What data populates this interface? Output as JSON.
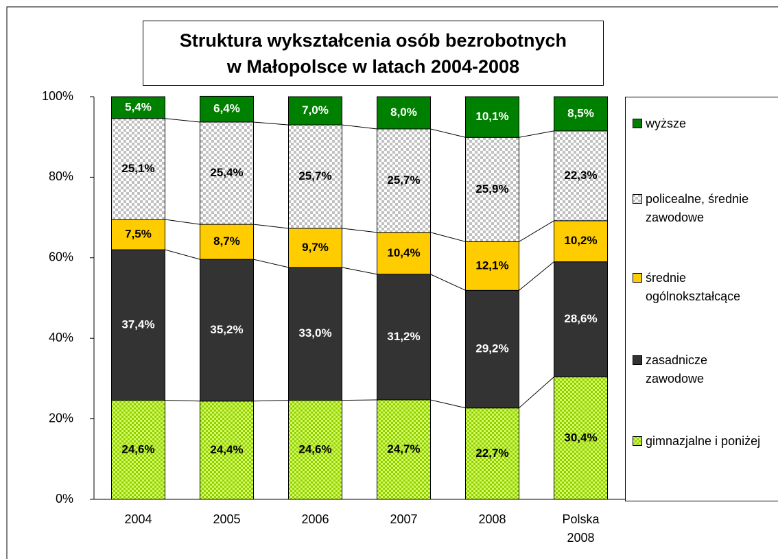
{
  "chart_data": {
    "type": "bar",
    "stacked": true,
    "title": "Struktura wykształcenia osób bezrobotnych w Małopolsce w latach 2004-2008",
    "categories": [
      "2004",
      "2005",
      "2006",
      "2007",
      "2008",
      "Polska 2008"
    ],
    "ylim": [
      0,
      100
    ],
    "yticks": [
      {
        "value": 0,
        "label": "0%"
      },
      {
        "value": 20,
        "label": "20%"
      },
      {
        "value": 40,
        "label": "40%"
      },
      {
        "value": 60,
        "label": "60%"
      },
      {
        "value": 80,
        "label": "80%"
      },
      {
        "value": 100,
        "label": "100%"
      }
    ],
    "legend": "right",
    "series": [
      {
        "name": "gimnazjalne i poniżej",
        "color": "#99cc00",
        "values": [
          24.6,
          24.4,
          24.6,
          24.7,
          22.7,
          30.4
        ],
        "value_labels": [
          "24,6%",
          "24,4%",
          "24,6%",
          "24,7%",
          "22,7%",
          "30,4%"
        ]
      },
      {
        "name": "zasadnicze zawodowe",
        "color": "#333333",
        "values": [
          37.4,
          35.2,
          33.0,
          31.2,
          29.2,
          28.6
        ],
        "value_labels": [
          "37,4%",
          "35,2%",
          "33,0%",
          "31,2%",
          "29,2%",
          "28,6%"
        ]
      },
      {
        "name": "średnie ogólnokształcące",
        "color": "#ffcc00",
        "values": [
          7.5,
          8.7,
          9.7,
          10.4,
          12.1,
          10.2
        ],
        "value_labels": [
          "7,5%",
          "8,7%",
          "9,7%",
          "10,4%",
          "12,1%",
          "10,2%"
        ]
      },
      {
        "name": "policealne, średnie zawodowe",
        "color": "#c0c0c0",
        "values": [
          25.1,
          25.4,
          25.7,
          25.7,
          25.9,
          22.3
        ],
        "value_labels": [
          "25,1%",
          "25,4%",
          "25,7%",
          "25,7%",
          "25,9%",
          "22,3%"
        ]
      },
      {
        "name": "wyższe",
        "color": "#008000",
        "values": [
          5.4,
          6.4,
          7.0,
          8.0,
          10.1,
          8.5
        ],
        "value_labels": [
          "5,4%",
          "6,4%",
          "7,0%",
          "8,0%",
          "10,1%",
          "8,5%"
        ]
      }
    ]
  }
}
